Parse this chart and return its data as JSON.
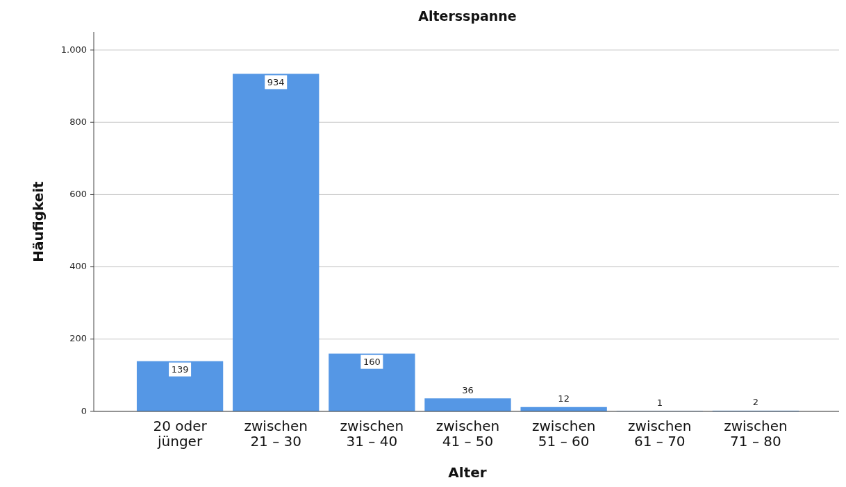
{
  "chart_data": {
    "type": "bar",
    "title": "Altersspanne",
    "xlabel": "Alter",
    "ylabel": "Häufigkeit",
    "categories": [
      "20 oder\njünger",
      "zwischen\n21 – 30",
      "zwischen\n31 – 40",
      "zwischen\n41 – 50",
      "zwischen\n51 – 60",
      "zwischen\n61 – 70",
      "zwischen\n71 – 80"
    ],
    "values": [
      139,
      934,
      160,
      36,
      12,
      1,
      2
    ],
    "color": "#5597e5",
    "ylim": [
      0,
      1050
    ],
    "yticks": [
      0,
      200,
      400,
      600,
      800,
      {
        "value": 1000,
        "label": "1.000"
      }
    ],
    "grid": "y",
    "data_labels": true
  }
}
